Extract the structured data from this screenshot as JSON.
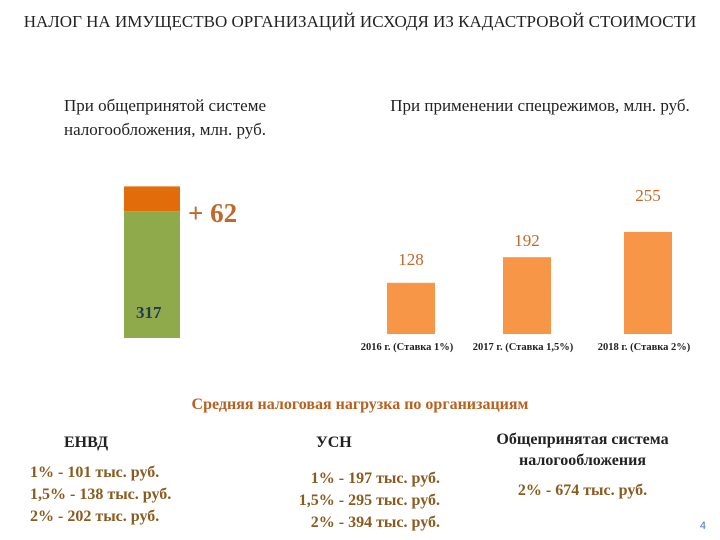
{
  "title": "НАЛОГ НА ИМУЩЕСТВО ОРГАНИЗАЦИЙ ИСХОДЯ ИЗ КАДАСТРОВОЙ СТОИМОСТИ",
  "left_subtitle": "При общепринятой системе налогообложения, млн. руб.",
  "right_subtitle": "При применении спецрежимов, млн. руб.",
  "colors": {
    "base": "#8faa4a",
    "increment": "#e36c0a",
    "bar": "#f79646",
    "label": "#c0692a",
    "accent": "#b8601f"
  },
  "chart_data": [
    {
      "type": "bar",
      "stacked": true,
      "categories": [
        ""
      ],
      "series": [
        {
          "name": "",
          "values": [
            317
          ],
          "label": "317"
        },
        {
          "name": "",
          "values": [
            62
          ],
          "label": "+ 62"
        }
      ],
      "ylim": [
        0,
        420
      ]
    },
    {
      "type": "bar",
      "categories": [
        "2016 г. (Ставка 1%)",
        "2017 г. (Ставка 1,5%)",
        "2018 г. (Ставка 2%)"
      ],
      "values": [
        128,
        192,
        255
      ],
      "ylim": [
        0,
        330
      ]
    }
  ],
  "section_title": "Средняя налоговая нагрузка по организациям",
  "columns": [
    {
      "heading": "ЕНВД",
      "lines": [
        "1% - 101 тыс. руб.",
        "1,5% - 138 тыс. руб.",
        "2% - 202 тыс. руб."
      ]
    },
    {
      "heading": "УСН",
      "lines": [
        "1% - 197 тыс. руб.",
        "1,5% - 295 тыс. руб.",
        "2% - 394 тыс. руб."
      ]
    },
    {
      "heading": "Общепринятая система налогообложения",
      "lines": [
        "2% - 674 тыс. руб."
      ]
    }
  ],
  "page_number": "4"
}
